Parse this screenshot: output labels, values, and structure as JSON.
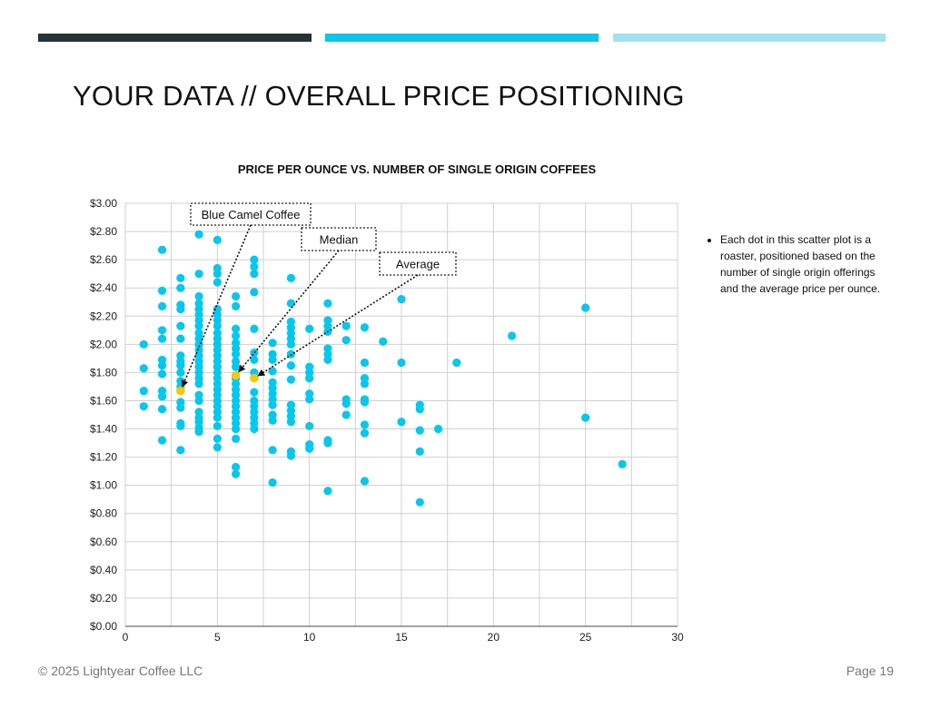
{
  "header": {
    "title": "YOUR DATA // OVERALL PRICE POSITIONING",
    "bar_colors": [
      "#26323a",
      "#06c8ee",
      "#9de3f2"
    ]
  },
  "note": {
    "bullet": "Each dot in this scatter plot is a roaster, positioned based on the number of single origin offerings and the average price per ounce."
  },
  "footer": {
    "copyright": "© 2025 Lightyear Coffee LLC",
    "page": "Page 19"
  },
  "chart_data": {
    "type": "scatter",
    "title": "PRICE PER OUNCE VS. NUMBER OF SINGLE ORIGIN COFFEES",
    "xlabel": "",
    "ylabel": "",
    "xlim": [
      0,
      30
    ],
    "ylim": [
      0,
      3
    ],
    "x_ticks": [
      0,
      5,
      10,
      15,
      20,
      25,
      30
    ],
    "x_tick_labels": [
      "0",
      "5",
      "10",
      "15",
      "20",
      "25",
      "30"
    ],
    "y_ticks": [
      0,
      0.2,
      0.4,
      0.6,
      0.8,
      1.0,
      1.2,
      1.4,
      1.6,
      1.8,
      2.0,
      2.2,
      2.4,
      2.6,
      2.8,
      3.0
    ],
    "y_tick_labels": [
      "$0.00",
      "$0.20",
      "$0.40",
      "$0.60",
      "$0.80",
      "$1.00",
      "$1.20",
      "$1.40",
      "$1.60",
      "$1.80",
      "$2.00",
      "$2.20",
      "$2.40",
      "$2.60",
      "$2.80",
      "$3.00"
    ],
    "grid": true,
    "point_color": "#06c8ee",
    "highlight_color": "#f2c811",
    "points": [
      [
        1,
        2.0
      ],
      [
        1,
        1.83
      ],
      [
        1,
        1.67
      ],
      [
        1,
        1.56
      ],
      [
        2,
        2.67
      ],
      [
        2,
        2.38
      ],
      [
        2,
        2.27
      ],
      [
        2,
        2.1
      ],
      [
        2,
        2.04
      ],
      [
        2,
        1.89
      ],
      [
        2,
        1.85
      ],
      [
        2,
        1.79
      ],
      [
        2,
        1.67
      ],
      [
        2,
        1.63
      ],
      [
        2,
        1.54
      ],
      [
        2,
        1.32
      ],
      [
        3,
        2.47
      ],
      [
        3,
        2.4
      ],
      [
        3,
        2.28
      ],
      [
        3,
        2.25
      ],
      [
        3,
        2.13
      ],
      [
        3,
        2.04
      ],
      [
        3,
        1.92
      ],
      [
        3,
        1.88
      ],
      [
        3,
        1.85
      ],
      [
        3,
        1.8
      ],
      [
        3,
        1.74
      ],
      [
        3,
        1.7
      ],
      [
        3,
        1.59
      ],
      [
        3,
        1.55
      ],
      [
        3,
        1.44
      ],
      [
        3,
        1.42
      ],
      [
        3,
        1.25
      ],
      [
        4,
        2.78
      ],
      [
        4,
        2.5
      ],
      [
        4,
        2.34
      ],
      [
        4,
        2.29
      ],
      [
        4,
        2.25
      ],
      [
        4,
        2.21
      ],
      [
        4,
        2.17
      ],
      [
        4,
        2.13
      ],
      [
        4,
        2.08
      ],
      [
        4,
        2.04
      ],
      [
        4,
        2.0
      ],
      [
        4,
        1.96
      ],
      [
        4,
        1.92
      ],
      [
        4,
        1.88
      ],
      [
        4,
        1.84
      ],
      [
        4,
        1.8
      ],
      [
        4,
        1.76
      ],
      [
        4,
        1.72
      ],
      [
        4,
        1.64
      ],
      [
        4,
        1.6
      ],
      [
        4,
        1.52
      ],
      [
        4,
        1.48
      ],
      [
        4,
        1.45
      ],
      [
        4,
        1.41
      ],
      [
        4,
        1.38
      ],
      [
        5,
        2.74
      ],
      [
        5,
        2.54
      ],
      [
        5,
        2.5
      ],
      [
        5,
        2.44
      ],
      [
        5,
        2.25
      ],
      [
        5,
        2.21
      ],
      [
        5,
        2.17
      ],
      [
        5,
        2.13
      ],
      [
        5,
        2.08
      ],
      [
        5,
        2.04
      ],
      [
        5,
        2.0
      ],
      [
        5,
        1.96
      ],
      [
        5,
        1.92
      ],
      [
        5,
        1.88
      ],
      [
        5,
        1.84
      ],
      [
        5,
        1.8
      ],
      [
        5,
        1.76
      ],
      [
        5,
        1.72
      ],
      [
        5,
        1.68
      ],
      [
        5,
        1.64
      ],
      [
        5,
        1.6
      ],
      [
        5,
        1.56
      ],
      [
        5,
        1.52
      ],
      [
        5,
        1.48
      ],
      [
        5,
        1.42
      ],
      [
        5,
        1.33
      ],
      [
        5,
        1.27
      ],
      [
        6,
        2.34
      ],
      [
        6,
        2.27
      ],
      [
        6,
        2.11
      ],
      [
        6,
        2.06
      ],
      [
        6,
        2.01
      ],
      [
        6,
        1.97
      ],
      [
        6,
        1.93
      ],
      [
        6,
        1.88
      ],
      [
        6,
        1.84
      ],
      [
        6,
        1.76
      ],
      [
        6,
        1.72
      ],
      [
        6,
        1.68
      ],
      [
        6,
        1.64
      ],
      [
        6,
        1.6
      ],
      [
        6,
        1.56
      ],
      [
        6,
        1.52
      ],
      [
        6,
        1.48
      ],
      [
        6,
        1.44
      ],
      [
        6,
        1.4
      ],
      [
        6,
        1.33
      ],
      [
        6,
        1.13
      ],
      [
        6,
        1.08
      ],
      [
        7,
        2.6
      ],
      [
        7,
        2.55
      ],
      [
        7,
        2.5
      ],
      [
        7,
        2.37
      ],
      [
        7,
        2.11
      ],
      [
        7,
        1.94
      ],
      [
        7,
        1.89
      ],
      [
        7,
        1.8
      ],
      [
        7,
        1.66
      ],
      [
        7,
        1.6
      ],
      [
        7,
        1.56
      ],
      [
        7,
        1.52
      ],
      [
        7,
        1.48
      ],
      [
        7,
        1.44
      ],
      [
        7,
        1.4
      ],
      [
        8,
        2.01
      ],
      [
        8,
        1.93
      ],
      [
        8,
        1.89
      ],
      [
        8,
        1.81
      ],
      [
        8,
        1.73
      ],
      [
        8,
        1.69
      ],
      [
        8,
        1.65
      ],
      [
        8,
        1.61
      ],
      [
        8,
        1.57
      ],
      [
        8,
        1.5
      ],
      [
        8,
        1.46
      ],
      [
        8,
        1.25
      ],
      [
        8,
        1.02
      ],
      [
        9,
        2.47
      ],
      [
        9,
        2.29
      ],
      [
        9,
        2.16
      ],
      [
        9,
        2.12
      ],
      [
        9,
        2.08
      ],
      [
        9,
        2.04
      ],
      [
        9,
        2.0
      ],
      [
        9,
        1.93
      ],
      [
        9,
        1.85
      ],
      [
        9,
        1.75
      ],
      [
        9,
        1.57
      ],
      [
        9,
        1.53
      ],
      [
        9,
        1.49
      ],
      [
        9,
        1.45
      ],
      [
        9,
        1.24
      ],
      [
        9,
        1.21
      ],
      [
        10,
        2.11
      ],
      [
        10,
        1.84
      ],
      [
        10,
        1.8
      ],
      [
        10,
        1.76
      ],
      [
        10,
        1.65
      ],
      [
        10,
        1.61
      ],
      [
        10,
        1.42
      ],
      [
        10,
        1.29
      ],
      [
        10,
        1.26
      ],
      [
        11,
        2.29
      ],
      [
        11,
        2.17
      ],
      [
        11,
        2.13
      ],
      [
        11,
        2.09
      ],
      [
        11,
        1.97
      ],
      [
        11,
        1.93
      ],
      [
        11,
        1.89
      ],
      [
        11,
        1.32
      ],
      [
        11,
        1.3
      ],
      [
        11,
        0.96
      ],
      [
        12,
        2.13
      ],
      [
        12,
        2.03
      ],
      [
        12,
        1.61
      ],
      [
        12,
        1.58
      ],
      [
        12,
        1.5
      ],
      [
        13,
        2.12
      ],
      [
        13,
        1.87
      ],
      [
        13,
        1.76
      ],
      [
        13,
        1.72
      ],
      [
        13,
        1.61
      ],
      [
        13,
        1.59
      ],
      [
        13,
        1.43
      ],
      [
        13,
        1.37
      ],
      [
        13,
        1.03
      ],
      [
        14,
        2.02
      ],
      [
        15,
        2.32
      ],
      [
        15,
        1.87
      ],
      [
        15,
        1.45
      ],
      [
        16,
        1.57
      ],
      [
        16,
        1.54
      ],
      [
        16,
        1.39
      ],
      [
        16,
        1.24
      ],
      [
        16,
        0.88
      ],
      [
        17,
        1.4
      ],
      [
        18,
        1.87
      ],
      [
        21,
        2.06
      ],
      [
        25,
        2.26
      ],
      [
        25,
        1.48
      ],
      [
        27,
        1.15
      ]
    ],
    "highlights": [
      {
        "label": "Blue Camel Coffee",
        "x": 3,
        "y": 1.67
      },
      {
        "label": "Median",
        "x": 6,
        "y": 1.78
      },
      {
        "label": "Average",
        "x": 7,
        "y": 1.76
      }
    ]
  }
}
